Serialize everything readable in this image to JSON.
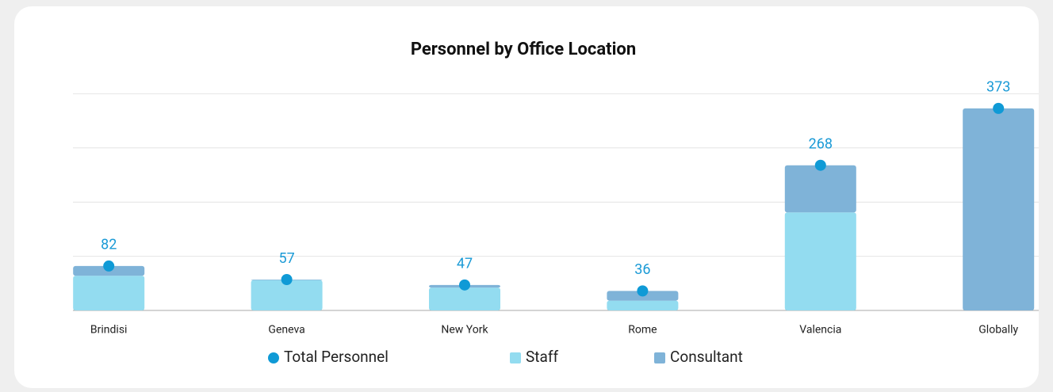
{
  "chart_data": {
    "type": "stacked_bar_line",
    "title": "Personnel by Office Location",
    "categories": [
      "Brindisi",
      "Geneva",
      "New York",
      "Rome",
      "Valencia",
      "Globally"
    ],
    "series": [
      {
        "name": "Total Personnel",
        "color": "#0f9ad6",
        "kind": "dot",
        "values": [
          82,
          57,
          47,
          36,
          268,
          373
        ]
      },
      {
        "name": "Staff",
        "color": "#93dcf0",
        "kind": "bar",
        "values": [
          64,
          56,
          42,
          18,
          181,
          0
        ]
      },
      {
        "name": "Consultant",
        "color": "#7fb3d8",
        "kind": "bar",
        "values": [
          18,
          1,
          5,
          18,
          87,
          373
        ]
      }
    ],
    "ylim": [
      0,
      400
    ],
    "yticks": [
      0,
      100,
      200,
      300,
      400
    ],
    "grid": true,
    "legend": "bottom"
  }
}
